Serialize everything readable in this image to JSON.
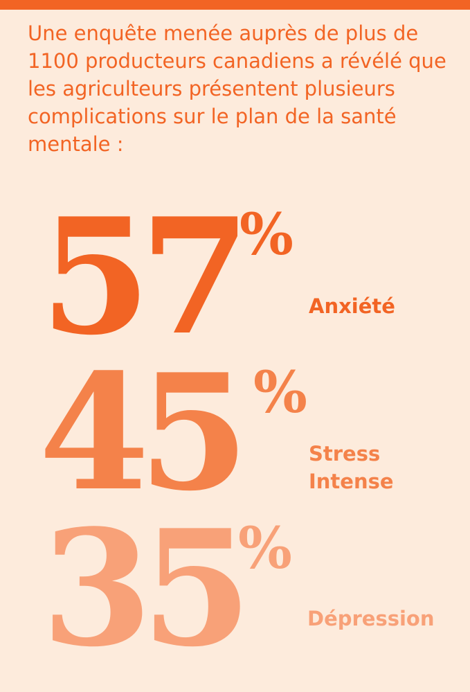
{
  "colors": {
    "background": "#fdebdc",
    "top_bar": "#f26424",
    "intro_text": "#f26424",
    "stat_1": "#f26424",
    "stat_2": "#f4824a",
    "stat_3": "#f8a178"
  },
  "intro": "Une enquête menée auprès de plus de 1100 producteurs canadiens a révélé que les agriculteurs présentent plusieurs complications sur le plan de la santé mentale :",
  "stats": [
    {
      "value": "57",
      "percent_sign": "%",
      "label": "Anxiété"
    },
    {
      "value": "45",
      "percent_sign": "%",
      "label": "Stress\nIntense"
    },
    {
      "value": "35",
      "percent_sign": "%",
      "label": "Dépression"
    }
  ]
}
